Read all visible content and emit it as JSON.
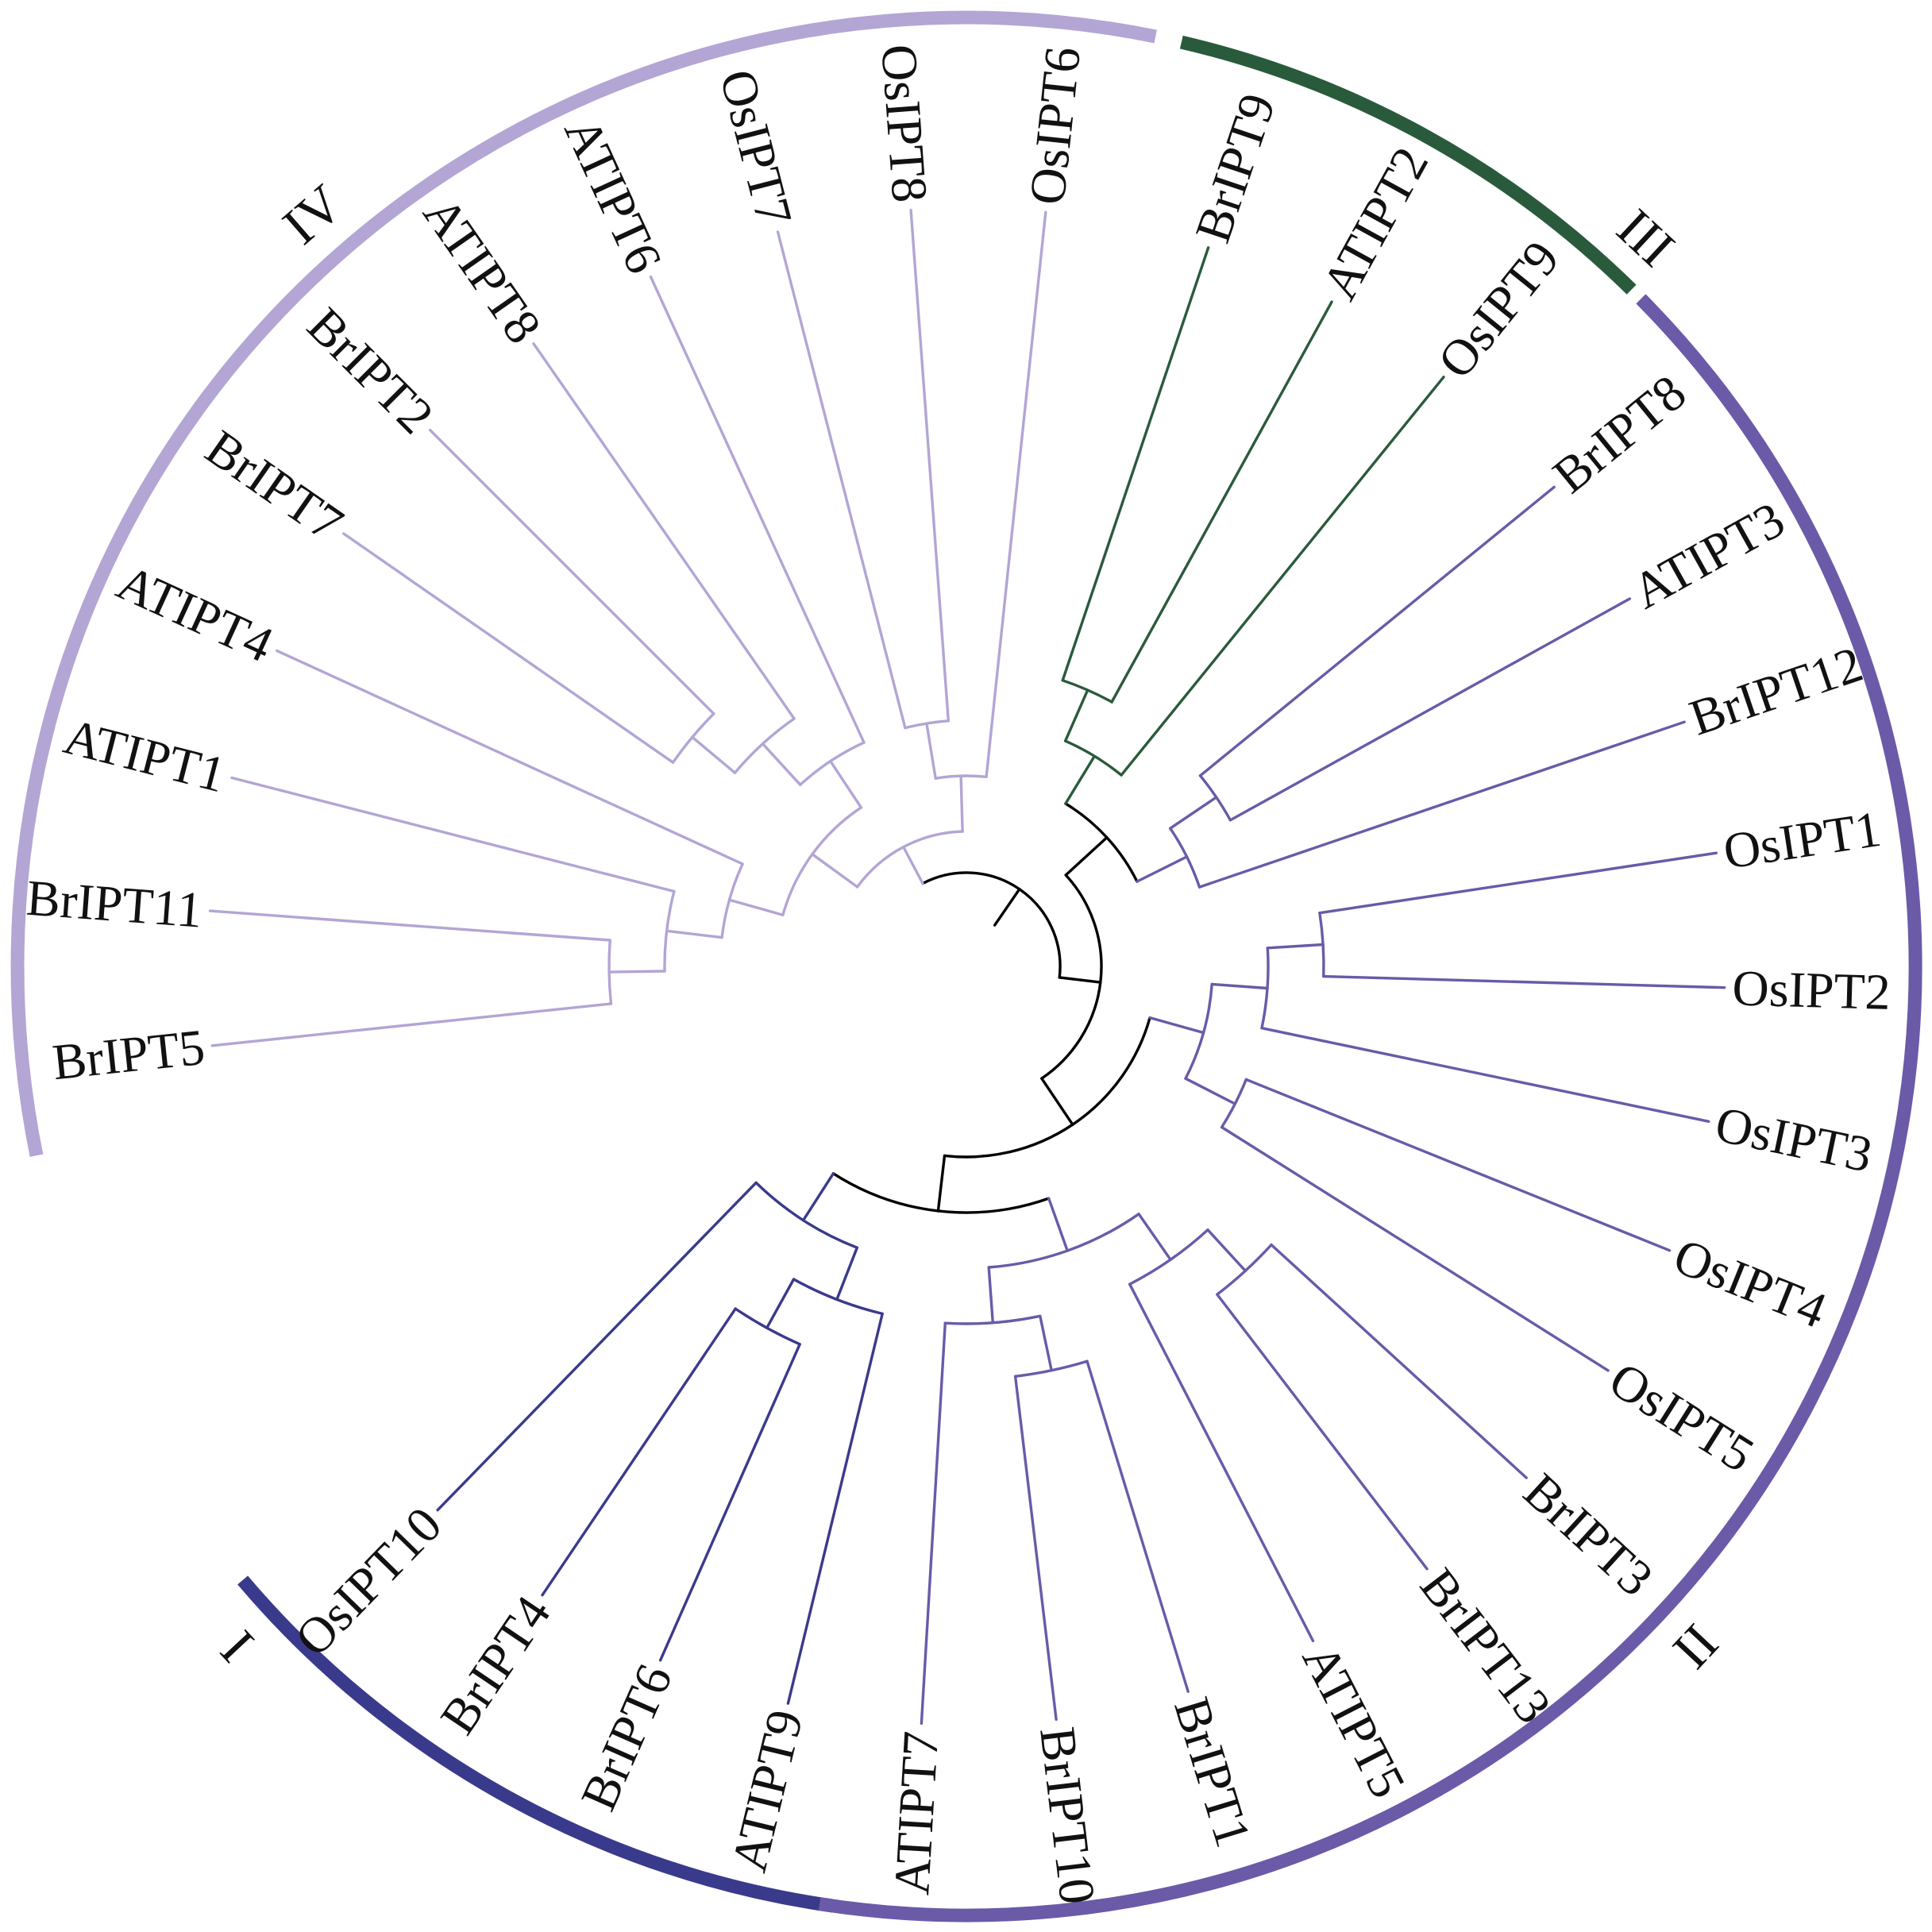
{
  "colors": {
    "root": "#000000",
    "group_I": "#b3a5d4",
    "group_II": "#2a5a3c",
    "group_III": "#6a5aa8",
    "group_IV": "#3a3a8c"
  },
  "groups": [
    {
      "id": "IV",
      "label": "IV",
      "color_key": "group_IV"
    },
    {
      "id": "III",
      "label": "III",
      "color_key": "group_III"
    },
    {
      "id": "II",
      "label": "II",
      "color_key": "group_II"
    },
    {
      "id": "I",
      "label": "I",
      "color_key": "group_I"
    }
  ],
  "leaves": [
    {
      "name": "BrIPT5",
      "group": "I"
    },
    {
      "name": "BrIPT11",
      "group": "I"
    },
    {
      "name": "ATIPT1",
      "group": "I"
    },
    {
      "name": "ATIPT4",
      "group": "I"
    },
    {
      "name": "BrIPT7",
      "group": "I"
    },
    {
      "name": "BrIPT2",
      "group": "I"
    },
    {
      "name": "ATIPT8",
      "group": "I"
    },
    {
      "name": "ATIPT6",
      "group": "I"
    },
    {
      "name": "OsIPT7",
      "group": "I"
    },
    {
      "name": "OsIPT8",
      "group": "I"
    },
    {
      "name": "OsIPT6",
      "group": "I"
    },
    {
      "name": "BrIPT9",
      "group": "II"
    },
    {
      "name": "ATIPT2",
      "group": "II"
    },
    {
      "name": "OsIPT9",
      "group": "II"
    },
    {
      "name": "BrIPT8",
      "group": "III"
    },
    {
      "name": "ATIPT3",
      "group": "III"
    },
    {
      "name": "BrIPT12",
      "group": "III"
    },
    {
      "name": "OsIPT1",
      "group": "III"
    },
    {
      "name": "OsIPT2",
      "group": "III"
    },
    {
      "name": "OsIPT3",
      "group": "III"
    },
    {
      "name": "OsIPT4",
      "group": "III"
    },
    {
      "name": "OsIPT5",
      "group": "III"
    },
    {
      "name": "BrIPT3",
      "group": "III"
    },
    {
      "name": "BrIPT13",
      "group": "III"
    },
    {
      "name": "ATIPT5",
      "group": "III"
    },
    {
      "name": "BrIPT1",
      "group": "III"
    },
    {
      "name": "BrIPT10",
      "group": "III"
    },
    {
      "name": "ATIPT7",
      "group": "III"
    },
    {
      "name": "ATIPT9",
      "group": "IV"
    },
    {
      "name": "BrIPT6",
      "group": "IV"
    },
    {
      "name": "BrIPT4",
      "group": "IV"
    },
    {
      "name": "OsIPT10",
      "group": "IV"
    }
  ],
  "tree": {
    "c": [
      {
        "c": [
          {
            "c": [
              {
                "c": [
                  {
                    "c": [
                      {
                        "c": [
                          {
                            "l": "BrIPT5"
                          },
                          {
                            "l": "BrIPT11"
                          }
                        ]
                      },
                      {
                        "l": "ATIPT1"
                      }
                    ]
                  },
                  {
                    "l": "ATIPT4"
                  }
                ]
              },
              {
                "c": [
                  {
                    "c": [
                      {
                        "c": [
                          {
                            "l": "BrIPT7"
                          },
                          {
                            "l": "BrIPT2"
                          }
                        ]
                      },
                      {
                        "l": "ATIPT8"
                      }
                    ]
                  },
                  {
                    "l": "ATIPT6"
                  }
                ]
              }
            ]
          },
          {
            "c": [
              {
                "c": [
                  {
                    "l": "OsIPT7"
                  },
                  {
                    "l": "OsIPT8"
                  }
                ]
              },
              {
                "l": "OsIPT6"
              }
            ]
          }
        ]
      },
      {
        "c": [
          {
            "c": [
              {
                "c": [
                  {
                    "c": [
                      {
                        "l": "BrIPT9"
                      },
                      {
                        "l": "ATIPT2"
                      }
                    ]
                  },
                  {
                    "l": "OsIPT9"
                  }
                ]
              },
              {
                "c": [
                  {
                    "c": [
                      {
                        "l": "BrIPT8"
                      },
                      {
                        "l": "ATIPT3"
                      }
                    ]
                  },
                  {
                    "l": "BrIPT12"
                  }
                ]
              }
            ]
          },
          {
            "c": [
              {
                "c": [
                  {
                    "c": [
                      {
                        "c": [
                          {
                            "l": "OsIPT1"
                          },
                          {
                            "l": "OsIPT2"
                          }
                        ]
                      },
                      {
                        "l": "OsIPT3"
                      }
                    ]
                  },
                  {
                    "c": [
                      {
                        "l": "OsIPT4"
                      },
                      {
                        "l": "OsIPT5"
                      }
                    ]
                  }
                ]
              },
              {
                "c": [
                  {
                    "c": [
                      {
                        "c": [
                          {
                            "c": [
                              {
                                "l": "BrIPT3"
                              },
                              {
                                "l": "BrIPT13"
                              }
                            ]
                          },
                          {
                            "l": "ATIPT5"
                          }
                        ]
                      },
                      {
                        "c": [
                          {
                            "c": [
                              {
                                "l": "BrIPT1"
                              },
                              {
                                "l": "BrIPT10"
                              }
                            ]
                          },
                          {
                            "l": "ATIPT7"
                          }
                        ]
                      }
                    ]
                  },
                  {
                    "c": [
                      {
                        "c": [
                          {
                            "c": [
                              {
                                "l": "BrIPT4"
                              },
                              {
                                "l": "BrIPT6"
                              }
                            ]
                          },
                          {
                            "l": "ATIPT9"
                          }
                        ]
                      },
                      {
                        "l": "OsIPT10"
                      }
                    ]
                  }
                ]
              }
            ]
          }
        ]
      }
    ]
  }
}
